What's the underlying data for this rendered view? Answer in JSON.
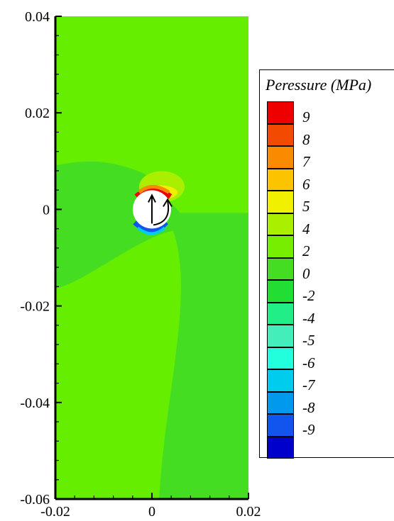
{
  "chart_data": {
    "type": "heatmap",
    "title": "",
    "xlabel": "",
    "ylabel": "",
    "xlim": [
      -0.02,
      0.02
    ],
    "ylim": [
      -0.06,
      0.04
    ],
    "x_ticks": [
      "-0.02",
      "0",
      "0.02"
    ],
    "y_ticks": [
      "0.04",
      "0.02",
      "0",
      "-0.02",
      "-0.04",
      "-0.06"
    ],
    "x_tick_values": [
      -0.02,
      0,
      0.02
    ],
    "y_tick_values": [
      0.04,
      0.02,
      0,
      -0.02,
      -0.04,
      -0.06
    ],
    "grid": false,
    "legend": {
      "title": "Peressure (MPa)",
      "placement": "right",
      "levels": [
        {
          "label": "9",
          "color": "#ee0000"
        },
        {
          "label": "8",
          "color": "#f24a00"
        },
        {
          "label": "7",
          "color": "#fa8a00"
        },
        {
          "label": "6",
          "color": "#fcc400"
        },
        {
          "label": "5",
          "color": "#f0f000"
        },
        {
          "label": "4",
          "color": "#aaee00"
        },
        {
          "label": "2",
          "color": "#77ee00"
        },
        {
          "label": "0",
          "color": "#44dd22"
        },
        {
          "label": "-2",
          "color": "#22dd33"
        },
        {
          "label": "-4",
          "color": "#22ee88"
        },
        {
          "label": "-5",
          "color": "#44eebb"
        },
        {
          "label": "-6",
          "color": "#22ffdd"
        },
        {
          "label": "-7",
          "color": "#00ccee"
        },
        {
          "label": "-8",
          "color": "#0099ee"
        },
        {
          "label": "-9",
          "color": "#1155ee"
        },
        {
          "label": "",
          "color": "#0000cc"
        }
      ]
    },
    "field_regions": [
      {
        "region": "background",
        "pressure_level": "2",
        "color": "#66ee00"
      },
      {
        "region": "lower-middle",
        "pressure_level": "0",
        "color": "#44dd22"
      },
      {
        "region": "hole",
        "radius": 0.004,
        "center": [
          0,
          0
        ],
        "color": "#ffffff"
      }
    ]
  },
  "colors": {
    "field_background": "#66ee00",
    "field_lower": "#44dd22",
    "hole": "#ffffff"
  }
}
